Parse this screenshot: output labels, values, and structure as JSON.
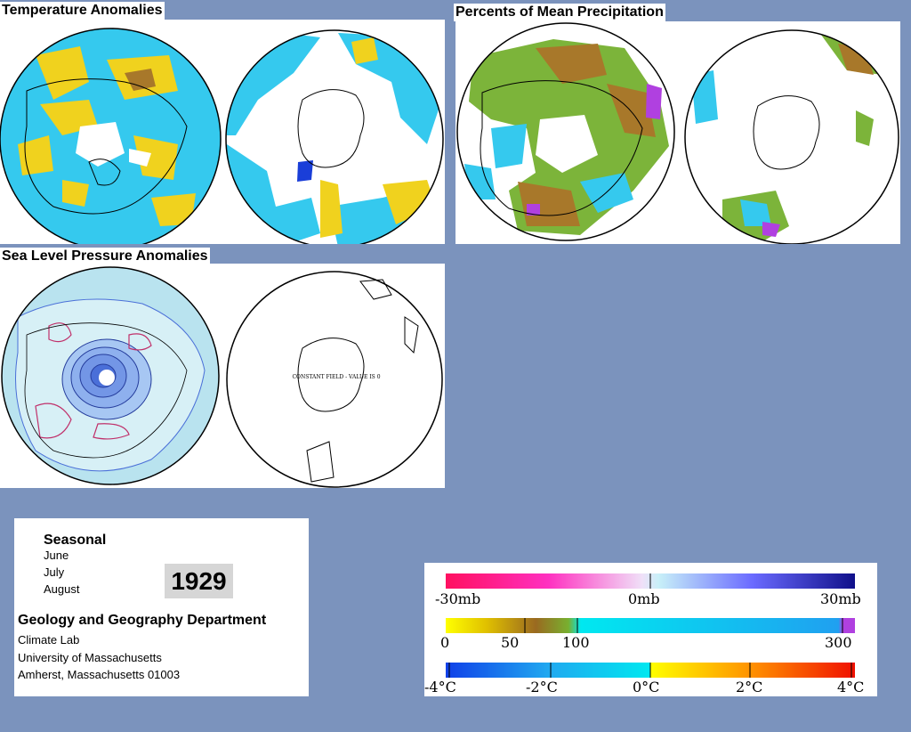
{
  "titles": {
    "temperature": "Temperature Anomalies",
    "precipitation": "Percents of Mean Precipitation",
    "pressure": "Sea Level Pressure Anomalies"
  },
  "maps": {
    "slp_south_note": "CONSTANT FIELD - VALUE IS 0"
  },
  "info": {
    "period": "Seasonal",
    "months": [
      "June",
      "July",
      "August"
    ],
    "year": "1929",
    "department": "Geology and Geography Department",
    "lines": [
      "Climate Lab",
      "University of Massachusetts",
      "Amherst, Massachusetts 01003"
    ]
  },
  "legend": {
    "pressure": {
      "labels": [
        "-30mb",
        "0mb",
        "30mb"
      ]
    },
    "precipitation": {
      "labels": [
        "0",
        "50",
        "100",
        "300"
      ]
    },
    "temperature": {
      "labels": [
        "-4°C",
        "-2°C",
        "0°C",
        "2°C",
        "4°C"
      ]
    }
  },
  "colors": {
    "background": "#7b93bd",
    "ocean_blue": "#35c9ee",
    "warm_yellow": "#f0d21e",
    "brown": "#a8782a",
    "green": "#7cb43a",
    "purple": "#b040e0",
    "slp_fill": "#b9e3ef",
    "slp_low": "#4a6fd8",
    "slp_high": "#c0306a"
  }
}
